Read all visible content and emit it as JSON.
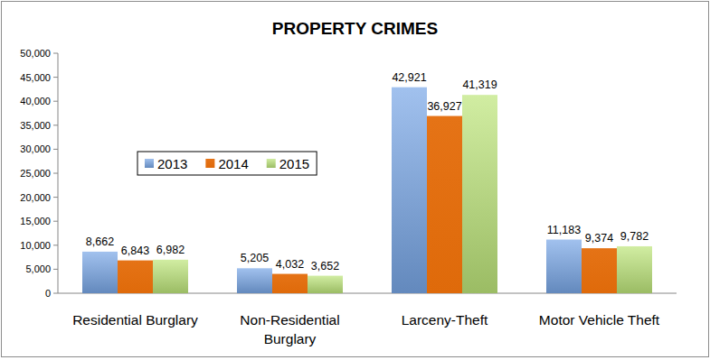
{
  "chart_data": {
    "type": "bar",
    "title": "PROPERTY CRIMES",
    "categories": [
      "Residential Burglary",
      "Non-Residential Burglary",
      "Larceny-Theft",
      "Motor Vehicle Theft"
    ],
    "series": [
      {
        "name": "2013",
        "color": "#79a7e6",
        "values": [
          8662,
          5205,
          42921,
          11183
        ]
      },
      {
        "name": "2014",
        "color": "#e46c0a",
        "values": [
          6843,
          4032,
          36927,
          9374
        ]
      },
      {
        "name": "2015",
        "color": "#bde57a",
        "values": [
          6982,
          3652,
          41319,
          9782
        ]
      }
    ],
    "ylim": [
      0,
      50000
    ],
    "yticks": [
      0,
      {
        "value": 5000,
        "label": "5,000"
      },
      {
        "value": 10000,
        "label": "10,000"
      },
      {
        "value": 15000,
        "label": "15,000"
      },
      {
        "value": 20000,
        "label": "20,000"
      },
      {
        "value": 25000,
        "label": "25,000"
      },
      {
        "value": 30000,
        "label": "30,000"
      },
      {
        "value": 35000,
        "label": "35,000"
      },
      {
        "value": 40000,
        "label": "40,000"
      },
      {
        "value": 45000,
        "label": "45,000"
      },
      {
        "value": 50000,
        "label": "50,000"
      }
    ],
    "grid": false,
    "legend": "left",
    "data_labels": true
  }
}
